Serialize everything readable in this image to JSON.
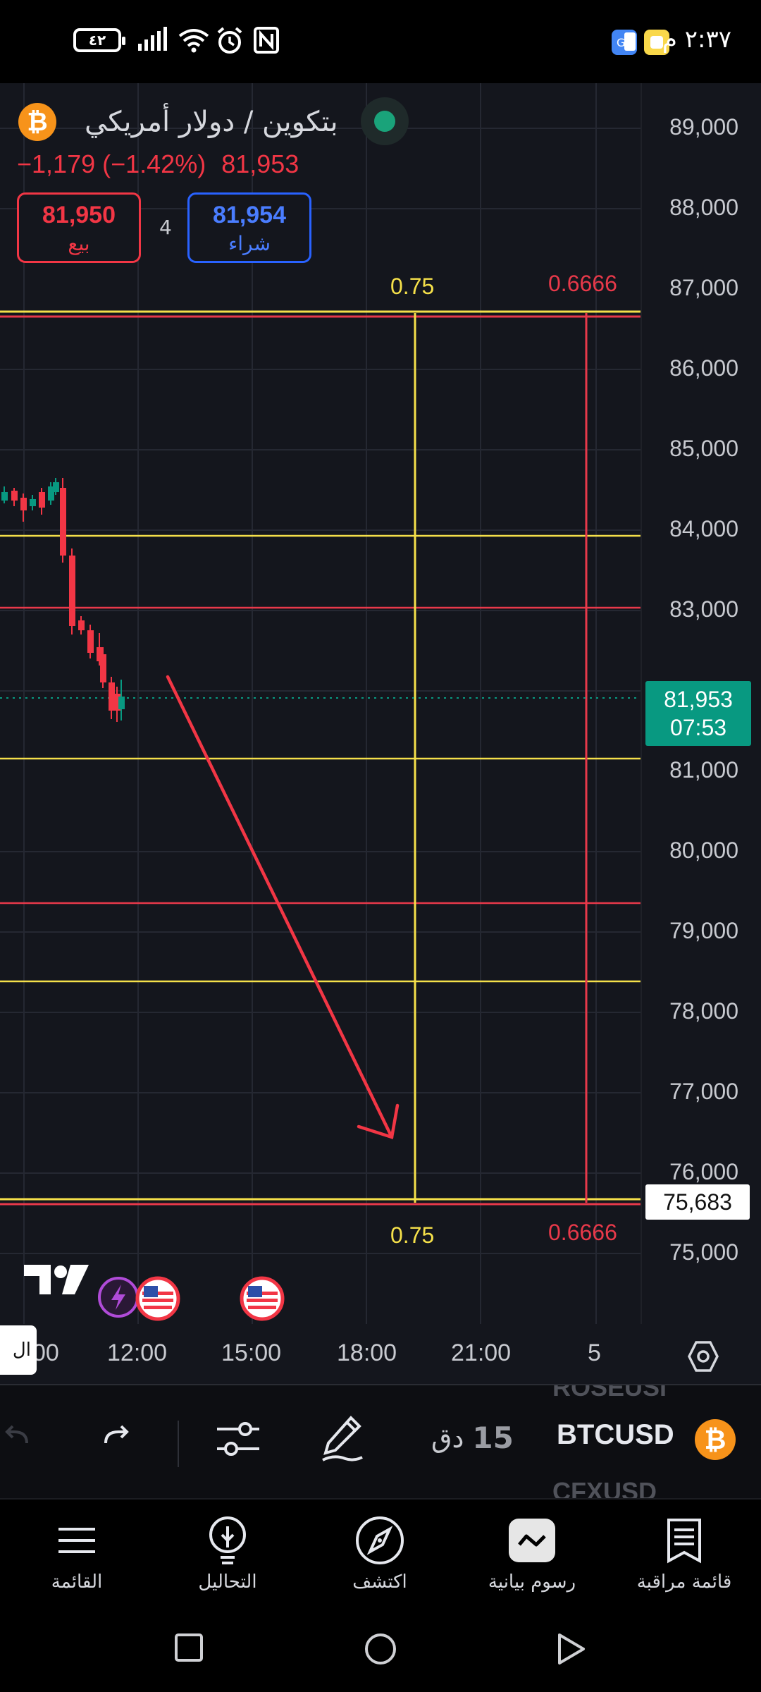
{
  "status_bar": {
    "time": "٢:٣٧ م",
    "battery": "٤٢",
    "icons": [
      "battery-icon",
      "signal-icon",
      "wifi-icon",
      "alarm-icon",
      "nfc-icon",
      "translate-app-icon",
      "notes-app-icon"
    ]
  },
  "header": {
    "symbol_name": "بتكوين / دولار أمريكي",
    "change": "−1,179 (−1.42%)",
    "last_price": "81,953",
    "sell_price": "81,950",
    "sell_label": "بيع",
    "buy_price": "81,954",
    "buy_label": "شراء",
    "spread": "4"
  },
  "chart": {
    "price_axis": [
      "89,000",
      "88,000",
      "87,000",
      "86,000",
      "85,000",
      "84,000",
      "83,000",
      "81,000",
      "80,000",
      "79,000",
      "78,000",
      "77,000",
      "76,000",
      "75,000"
    ],
    "time_axis": [
      "00",
      "12:00",
      "15:00",
      "18:00",
      "21:00",
      "5"
    ],
    "current_price": "81,953",
    "countdown": "07:53",
    "target_price": "75,683",
    "fib_top_left": "0.75",
    "fib_top_right": "0.6666",
    "fib_bottom_left": "0.75",
    "fib_bottom_right": "0.6666",
    "left_tab": "ال",
    "colors": {
      "up": "#089981",
      "down": "#f23645",
      "yellow": "#f5e04a",
      "red": "#e8394a"
    }
  },
  "toolbar": {
    "interval_num": "15",
    "interval_unit": "دق",
    "ticker_prev": "ROSEUSI",
    "ticker_current": "BTCUSD",
    "ticker_next": "CFXUSD"
  },
  "bottom_nav": {
    "items": [
      {
        "label": "القائمة",
        "icon": "menu-icon"
      },
      {
        "label": "التحاليل",
        "icon": "lightbulb-icon"
      },
      {
        "label": "اكتشف",
        "icon": "compass-icon"
      },
      {
        "label": "رسوم بيانية",
        "icon": "chart-icon"
      },
      {
        "label": "قائمة مراقبة",
        "icon": "watchlist-icon"
      }
    ]
  }
}
